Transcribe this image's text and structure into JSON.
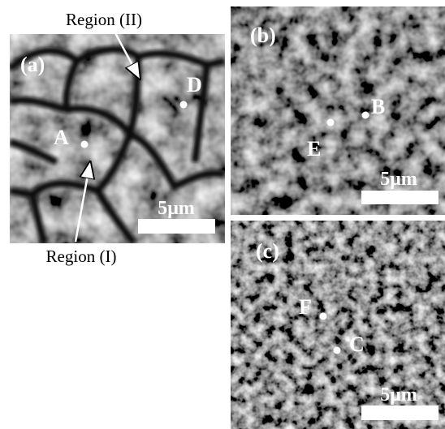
{
  "panels": [
    {
      "label": "(a)",
      "points": [
        "A",
        "D"
      ],
      "scale_bar": "5μm"
    },
    {
      "label": "(b)",
      "points": [
        "B",
        "E"
      ],
      "scale_bar": "5μm"
    },
    {
      "label": "(c)",
      "points": [
        "F",
        "C"
      ],
      "scale_bar": "5μm"
    }
  ],
  "annotations": [
    {
      "text": "Region (II)"
    },
    {
      "text": "Region (I)"
    }
  ]
}
